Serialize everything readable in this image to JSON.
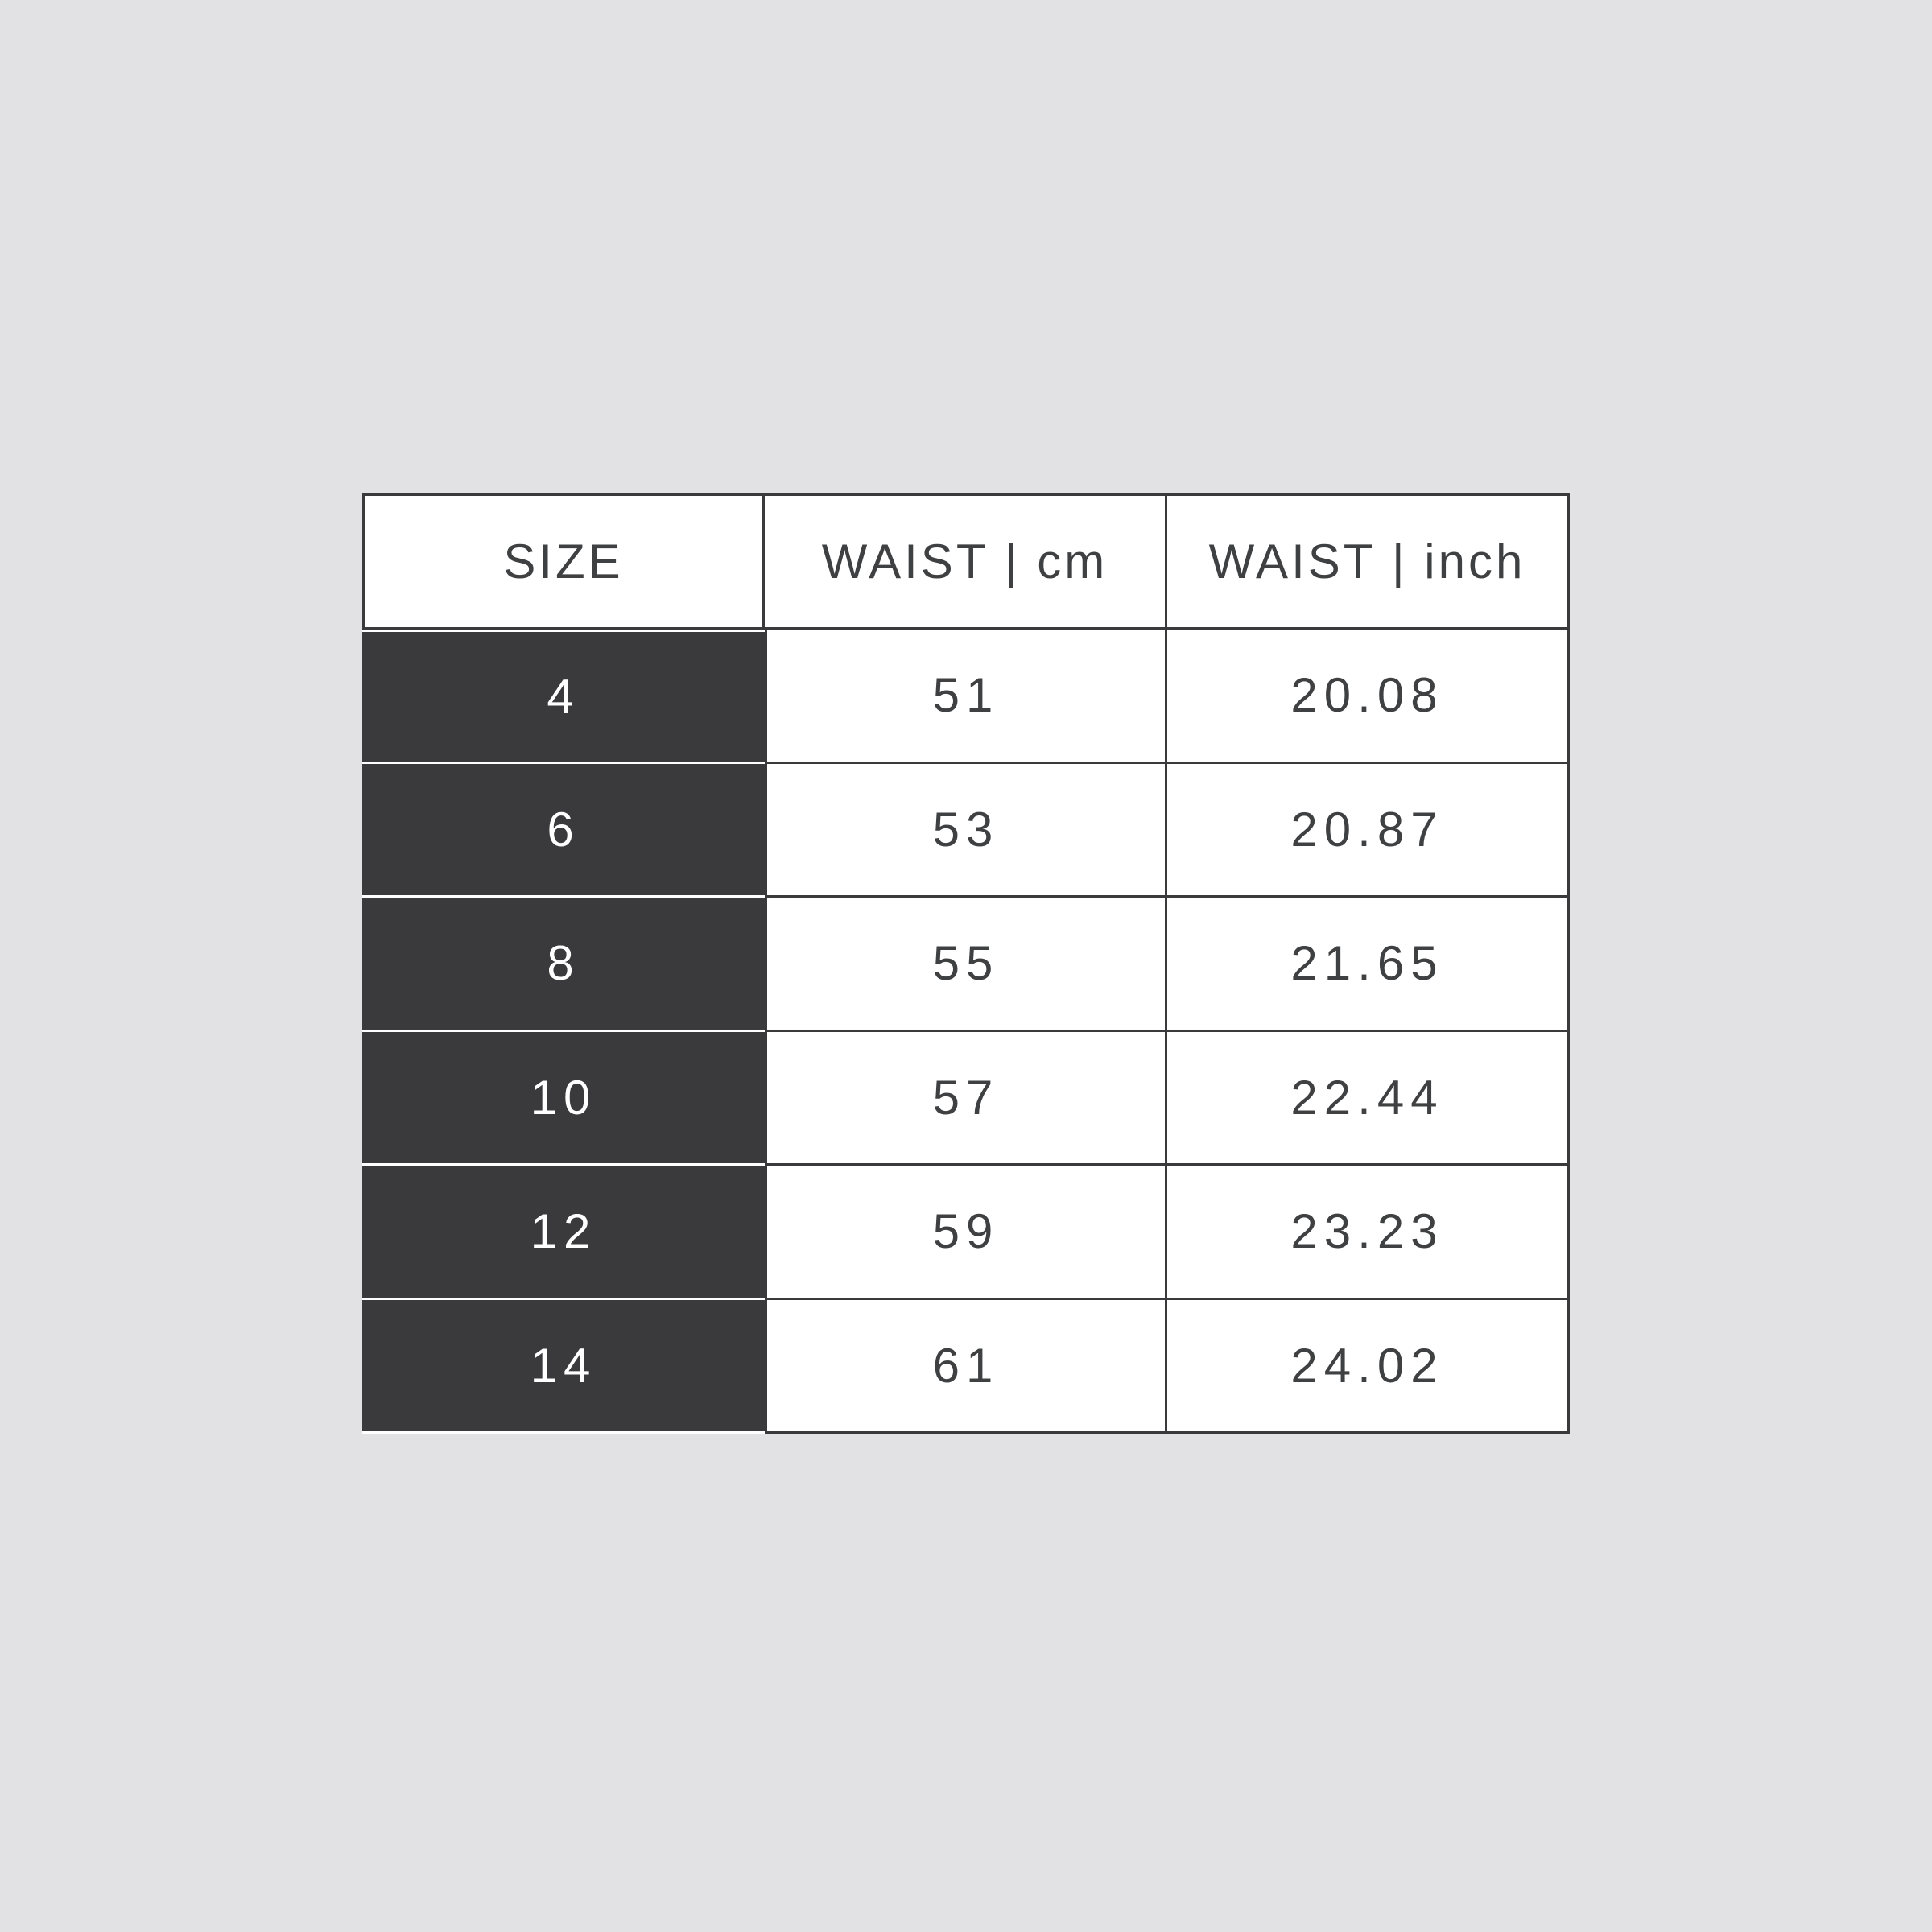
{
  "colors": {
    "background": "#e2e2e4",
    "size_cell_fill": "#3a3a3c",
    "border": "#3a3a3c",
    "text_dark": "#3f4041",
    "text_light": "#ffffff",
    "cell_white": "#ffffff"
  },
  "chart_data": {
    "type": "table",
    "title": "",
    "columns": [
      "SIZE",
      "WAIST | cm",
      "WAIST | inch"
    ],
    "rows": [
      [
        "4",
        "51",
        "20.08"
      ],
      [
        "6",
        "53",
        "20.87"
      ],
      [
        "8",
        "55",
        "21.65"
      ],
      [
        "10",
        "57",
        "22.44"
      ],
      [
        "12",
        "59",
        "23.23"
      ],
      [
        "14",
        "61",
        "24.02"
      ]
    ]
  }
}
